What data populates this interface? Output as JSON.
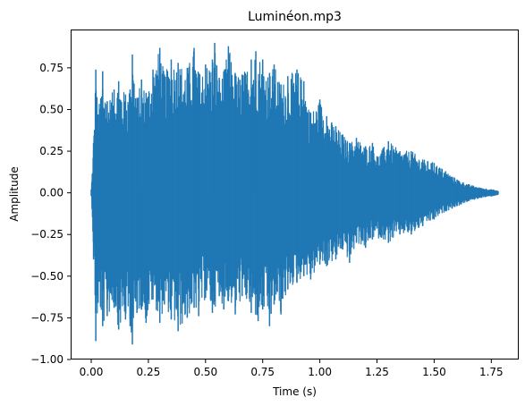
{
  "chart_data": {
    "type": "line",
    "title": "Luminéon.mp3",
    "xlabel": "Time (s)",
    "ylabel": "Amplitude",
    "xlim": [
      -0.09,
      1.87
    ],
    "ylim": [
      -1.0,
      0.98
    ],
    "x_ticks": [
      0.0,
      0.25,
      0.5,
      0.75,
      1.0,
      1.25,
      1.5,
      1.75
    ],
    "x_tick_labels": [
      "0.00",
      "0.25",
      "0.50",
      "0.75",
      "1.00",
      "1.25",
      "1.50",
      "1.75"
    ],
    "y_ticks": [
      -1.0,
      -0.75,
      -0.5,
      -0.25,
      0.0,
      0.25,
      0.5,
      0.75
    ],
    "y_tick_labels": [
      "−1.00",
      "−0.75",
      "−0.50",
      "−0.25",
      "0.00",
      "0.25",
      "0.50",
      "0.75"
    ],
    "grid": false,
    "color": "#1f77b4",
    "duration_s": 1.78,
    "series": [
      {
        "envelope_upper": [
          [
            0.0,
            0.02
          ],
          [
            0.01,
            0.3
          ],
          [
            0.02,
            0.74
          ],
          [
            0.03,
            0.47
          ],
          [
            0.05,
            0.73
          ],
          [
            0.07,
            0.55
          ],
          [
            0.1,
            0.62
          ],
          [
            0.12,
            0.67
          ],
          [
            0.15,
            0.59
          ],
          [
            0.17,
            0.62
          ],
          [
            0.18,
            0.83
          ],
          [
            0.2,
            0.57
          ],
          [
            0.22,
            0.68
          ],
          [
            0.24,
            0.6
          ],
          [
            0.27,
            0.74
          ],
          [
            0.3,
            0.87
          ],
          [
            0.32,
            0.71
          ],
          [
            0.35,
            0.8
          ],
          [
            0.38,
            0.78
          ],
          [
            0.42,
            0.75
          ],
          [
            0.45,
            0.87
          ],
          [
            0.47,
            0.72
          ],
          [
            0.5,
            0.77
          ],
          [
            0.53,
            0.8
          ],
          [
            0.54,
            0.9
          ],
          [
            0.56,
            0.69
          ],
          [
            0.58,
            0.73
          ],
          [
            0.6,
            0.88
          ],
          [
            0.63,
            0.72
          ],
          [
            0.66,
            0.71
          ],
          [
            0.7,
            0.8
          ],
          [
            0.72,
            0.85
          ],
          [
            0.75,
            0.8
          ],
          [
            0.78,
            0.72
          ],
          [
            0.8,
            0.77
          ],
          [
            0.83,
            0.65
          ],
          [
            0.86,
            0.7
          ],
          [
            0.9,
            0.74
          ],
          [
            0.93,
            0.67
          ],
          [
            0.96,
            0.48
          ],
          [
            1.0,
            0.56
          ],
          [
            1.03,
            0.46
          ],
          [
            1.07,
            0.4
          ],
          [
            1.1,
            0.35
          ],
          [
            1.13,
            0.3
          ],
          [
            1.16,
            0.33
          ],
          [
            1.2,
            0.28
          ],
          [
            1.23,
            0.3
          ],
          [
            1.25,
            0.22
          ],
          [
            1.3,
            0.31
          ],
          [
            1.35,
            0.25
          ],
          [
            1.4,
            0.25
          ],
          [
            1.45,
            0.2
          ],
          [
            1.5,
            0.18
          ],
          [
            1.55,
            0.13
          ],
          [
            1.6,
            0.08
          ],
          [
            1.65,
            0.05
          ],
          [
            1.7,
            0.03
          ],
          [
            1.75,
            0.02
          ],
          [
            1.78,
            0.01
          ]
        ],
        "envelope_lower": [
          [
            0.0,
            -0.02
          ],
          [
            0.01,
            -0.4
          ],
          [
            0.02,
            -0.89
          ],
          [
            0.03,
            -0.66
          ],
          [
            0.05,
            -0.8
          ],
          [
            0.07,
            -0.74
          ],
          [
            0.1,
            -0.69
          ],
          [
            0.12,
            -0.82
          ],
          [
            0.15,
            -0.76
          ],
          [
            0.17,
            -0.8
          ],
          [
            0.18,
            -0.91
          ],
          [
            0.2,
            -0.72
          ],
          [
            0.22,
            -0.7
          ],
          [
            0.24,
            -0.78
          ],
          [
            0.27,
            -0.64
          ],
          [
            0.3,
            -0.78
          ],
          [
            0.32,
            -0.67
          ],
          [
            0.35,
            -0.76
          ],
          [
            0.38,
            -0.83
          ],
          [
            0.42,
            -0.75
          ],
          [
            0.45,
            -0.69
          ],
          [
            0.47,
            -0.74
          ],
          [
            0.5,
            -0.63
          ],
          [
            0.53,
            -0.72
          ],
          [
            0.56,
            -0.62
          ],
          [
            0.58,
            -0.7
          ],
          [
            0.6,
            -0.65
          ],
          [
            0.63,
            -0.73
          ],
          [
            0.66,
            -0.62
          ],
          [
            0.7,
            -0.72
          ],
          [
            0.73,
            -0.77
          ],
          [
            0.75,
            -0.7
          ],
          [
            0.78,
            -0.8
          ],
          [
            0.8,
            -0.67
          ],
          [
            0.83,
            -0.73
          ],
          [
            0.86,
            -0.58
          ],
          [
            0.9,
            -0.54
          ],
          [
            0.93,
            -0.5
          ],
          [
            0.96,
            -0.52
          ],
          [
            1.0,
            -0.43
          ],
          [
            1.03,
            -0.44
          ],
          [
            1.07,
            -0.4
          ],
          [
            1.1,
            -0.34
          ],
          [
            1.13,
            -0.42
          ],
          [
            1.16,
            -0.3
          ],
          [
            1.2,
            -0.33
          ],
          [
            1.23,
            -0.28
          ],
          [
            1.27,
            -0.27
          ],
          [
            1.3,
            -0.3
          ],
          [
            1.35,
            -0.25
          ],
          [
            1.4,
            -0.25
          ],
          [
            1.45,
            -0.2
          ],
          [
            1.5,
            -0.16
          ],
          [
            1.55,
            -0.11
          ],
          [
            1.6,
            -0.08
          ],
          [
            1.65,
            -0.05
          ],
          [
            1.7,
            -0.03
          ],
          [
            1.75,
            -0.02
          ],
          [
            1.78,
            -0.01
          ]
        ]
      }
    ]
  }
}
